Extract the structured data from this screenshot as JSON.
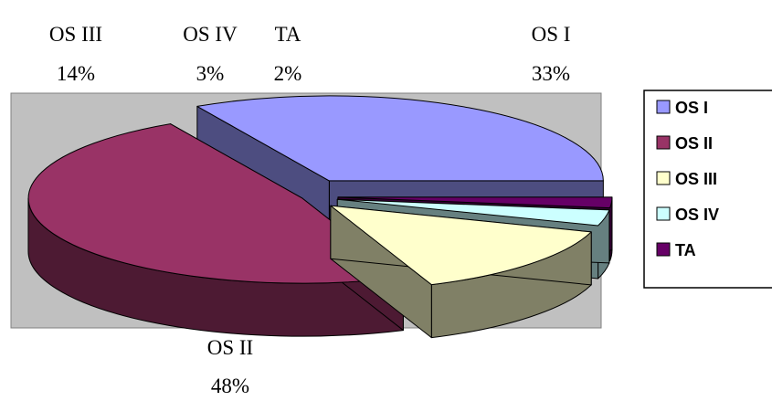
{
  "chart_data": {
    "type": "pie",
    "style": "3d-exploded",
    "slices": [
      {
        "name": "OS I",
        "value": 33,
        "label": "OS I",
        "pct_label": "33%",
        "top_color": "#9999ff",
        "side_color": "#4d4d80"
      },
      {
        "name": "OS II",
        "value": 48,
        "label": "OS II",
        "pct_label": "48%",
        "top_color": "#993366",
        "side_color": "#4d1a33"
      },
      {
        "name": "OS III",
        "value": 14,
        "label": "OS III",
        "pct_label": "14%",
        "top_color": "#ffffcc",
        "side_color": "#808066"
      },
      {
        "name": "OS IV",
        "value": 3,
        "label": "OS IV",
        "pct_label": "3%",
        "top_color": "#ccffff",
        "side_color": "#668080"
      },
      {
        "name": "TA",
        "value": 2,
        "label": "TA",
        "pct_label": "2%",
        "top_color": "#660066",
        "side_color": "#330033"
      }
    ],
    "plot_area_color": "#c0c0c0",
    "legend": {
      "placement": "right",
      "entries": [
        "OS I",
        "OS II",
        "OS III",
        "OS IV",
        "TA"
      ]
    }
  }
}
